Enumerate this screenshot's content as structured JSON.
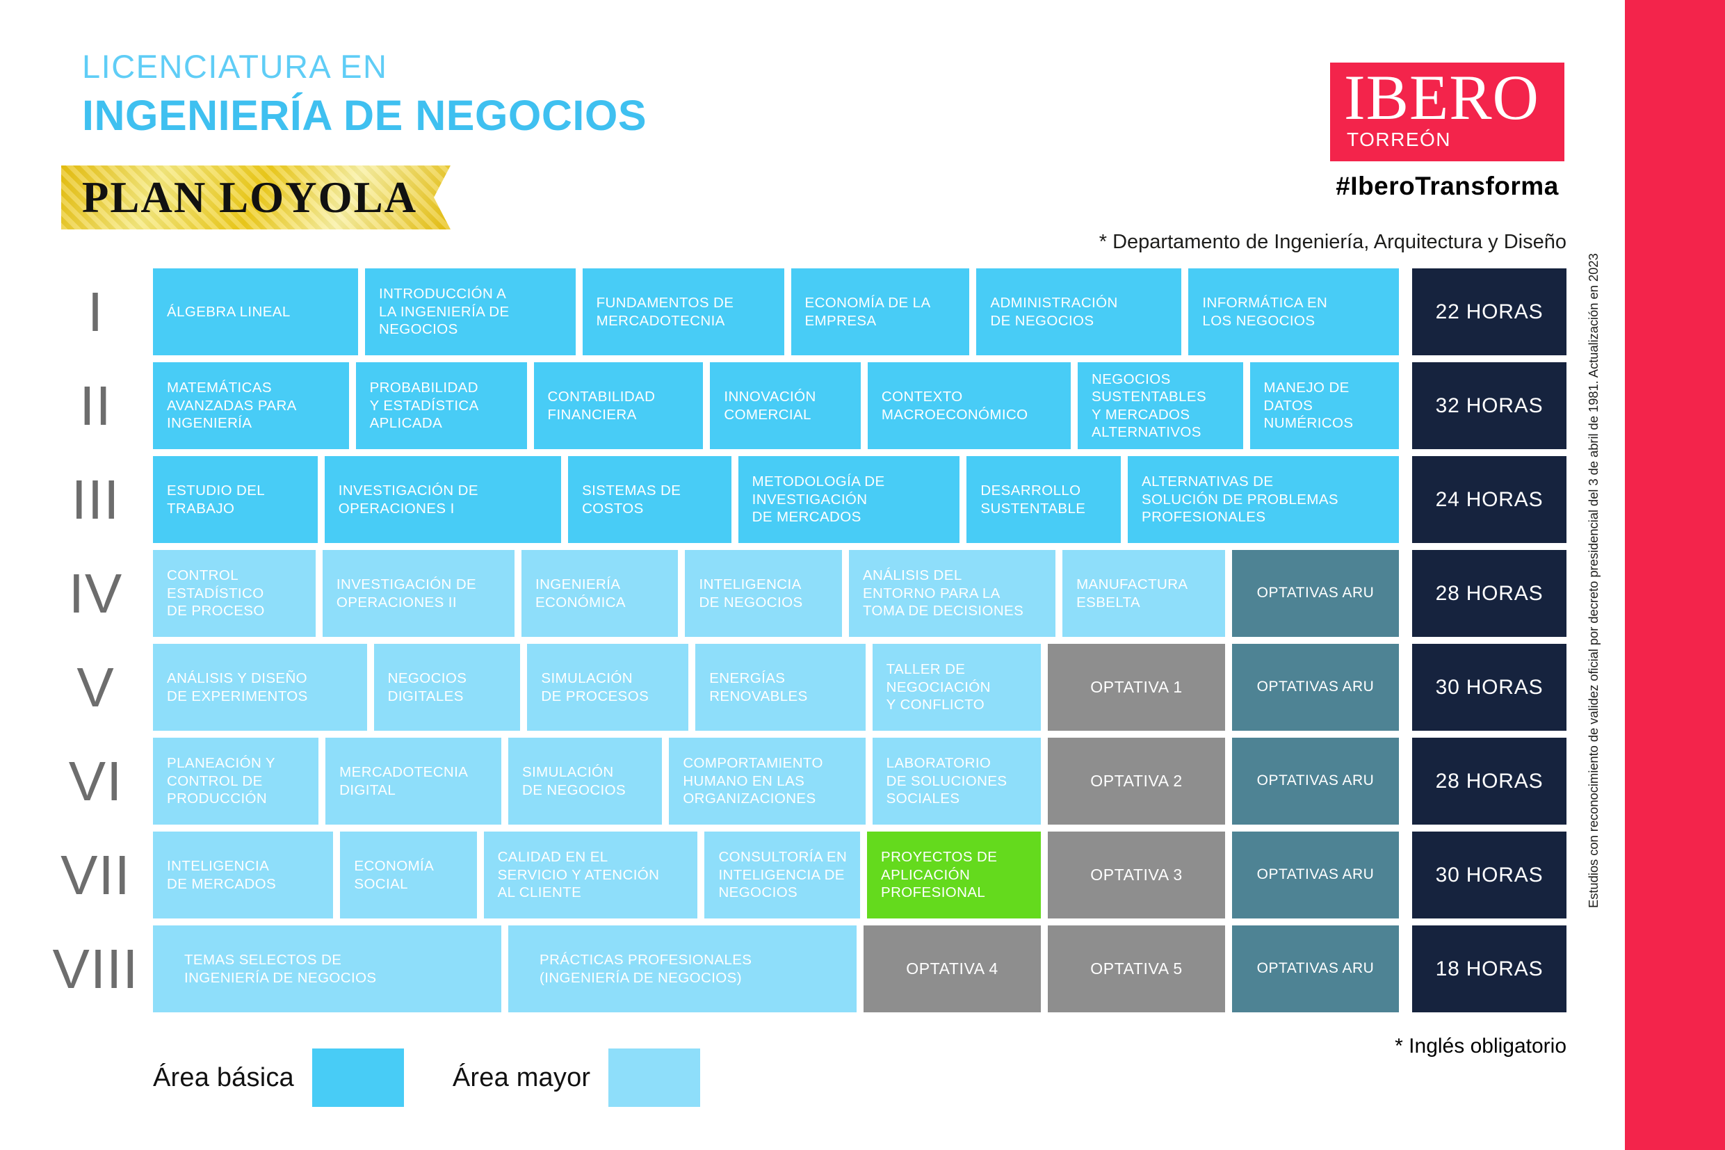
{
  "header": {
    "degree_type": "LICENCIATURA EN",
    "degree_name": "INGENIERÍA DE NEGOCIOS",
    "plan_banner": "PLAN LOYOLA",
    "logo": {
      "name": "IBERO",
      "campus": "TORREÓN",
      "hashtag": "#IberoTransforma"
    },
    "department_note": "* Departamento de Ingeniería, Arquitectura y Diseño"
  },
  "colors": {
    "basica": "#48CCF6",
    "mayor": "#8EDEFA",
    "aru": "#4E8394",
    "optativa": "#8E8E8E",
    "green": "#64DA1D",
    "hours": "#16233E",
    "accent_red": "#F3244B",
    "gold": "#EECB1A"
  },
  "grid": {
    "rows": [
      {
        "numeral": "I",
        "hours": "22 HORAS",
        "cells": [
          {
            "label": "ÁLGEBRA LINEAL",
            "type": "basica",
            "w": 1.02
          },
          {
            "label": "INTRODUCCIÓN A\nLA INGENIERÍA DE\nNEGOCIOS",
            "type": "basica",
            "w": 1.05
          },
          {
            "label": "FUNDAMENTOS DE\nMERCADOTECNIA",
            "type": "basica",
            "w": 1.0
          },
          {
            "label": "ECONOMÍA DE LA\nEMPRESA",
            "type": "basica",
            "w": 0.87
          },
          {
            "label": "ADMINISTRACIÓN\nDE NEGOCIOS",
            "type": "basica",
            "w": 1.02
          },
          {
            "label": "INFORMÁTICA EN\nLOS NEGOCIOS",
            "type": "basica",
            "w": 1.05
          }
        ]
      },
      {
        "numeral": "II",
        "hours": "32 HORAS",
        "cells": [
          {
            "label": "MATEMÁTICAS\nAVANZADAS PARA\nINGENIERÍA",
            "type": "basica",
            "w": 1.17
          },
          {
            "label": "PROBABILIDAD\nY ESTADÍSTICA\nAPLICADA",
            "type": "basica",
            "w": 1.0
          },
          {
            "label": "CONTABILIDAD\nFINANCIERA",
            "type": "basica",
            "w": 0.99
          },
          {
            "label": "INNOVACIÓN\nCOMERCIAL",
            "type": "basica",
            "w": 0.86
          },
          {
            "label": "CONTEXTO\nMACROECONÓMICO",
            "type": "basica",
            "w": 1.22
          },
          {
            "label": "NEGOCIOS\nSUSTENTABLES\nY MERCADOS\nALTERNATIVOS",
            "type": "basica",
            "w": 0.96
          },
          {
            "label": "MANEJO DE\nDATOS\nNUMÉRICOS",
            "type": "basica",
            "w": 0.85
          }
        ]
      },
      {
        "numeral": "III",
        "hours": "24 HORAS",
        "cells": [
          {
            "label": "ESTUDIO DEL\nTRABAJO",
            "type": "basica",
            "w": 0.93
          },
          {
            "label": "INVESTIGACIÓN DE\nOPERACIONES I",
            "type": "basica",
            "w": 1.41
          },
          {
            "label": "SISTEMAS DE\nCOSTOS",
            "type": "basica",
            "w": 0.92
          },
          {
            "label": "METODOLOGÍA DE\nINVESTIGACIÓN\nDE MERCADOS",
            "type": "basica",
            "w": 1.31
          },
          {
            "label": "DESARROLLO\nSUSTENTABLE",
            "type": "basica",
            "w": 0.86
          },
          {
            "label": "ALTERNATIVAS DE\nSOLUCIÓN DE PROBLEMAS\nPROFESIONALES",
            "type": "basica",
            "w": 1.64
          }
        ]
      },
      {
        "numeral": "IV",
        "hours": "28 HORAS",
        "cells": [
          {
            "label": "CONTROL\nESTADÍSTICO\nDE PROCESO",
            "type": "mayor",
            "w": 0.94
          },
          {
            "label": "INVESTIGACIÓN DE\nOPERACIONES II",
            "type": "mayor",
            "w": 1.14
          },
          {
            "label": "INGENIERÍA\nECONÓMICA",
            "type": "mayor",
            "w": 0.9
          },
          {
            "label": "INTELIGENCIA\nDE NEGOCIOS",
            "type": "mayor",
            "w": 0.9
          },
          {
            "label": "ANÁLISIS DEL\nENTORNO PARA LA\nTOMA DE DECISIONES",
            "type": "mayor",
            "w": 1.24
          },
          {
            "label": "MANUFACTURA\nESBELTA",
            "type": "mayor",
            "w": 0.94
          },
          {
            "label": "OPTATIVAS ARU",
            "type": "aru"
          }
        ]
      },
      {
        "numeral": "V",
        "hours": "30 HORAS",
        "cells": [
          {
            "label": "ANÁLISIS Y DISEÑO\nDE EXPERIMENTOS",
            "type": "mayor",
            "w": 1.29
          },
          {
            "label": "NEGOCIOS\nDIGITALES",
            "type": "mayor",
            "w": 0.83
          },
          {
            "label": "SIMULACIÓN\nDE PROCESOS",
            "type": "mayor",
            "w": 0.93
          },
          {
            "label": "ENERGÍAS\nRENOVABLES",
            "type": "mayor",
            "w": 0.99
          },
          {
            "label": "TALLER DE\nNEGOCIACIÓN\nY CONFLICTO",
            "type": "mayor",
            "w": 0.98
          },
          {
            "label": "OPTATIVA 1",
            "type": "optativa"
          },
          {
            "label": "OPTATIVAS ARU",
            "type": "aru"
          }
        ]
      },
      {
        "numeral": "VI",
        "hours": "28 HORAS",
        "cells": [
          {
            "label": "PLANEACIÓN Y\nCONTROL DE\nPRODUCCIÓN",
            "type": "mayor",
            "w": 0.96
          },
          {
            "label": "MERCADOTECNIA\nDIGITAL",
            "type": "mayor",
            "w": 1.03
          },
          {
            "label": "SIMULACIÓN\nDE NEGOCIOS",
            "type": "mayor",
            "w": 0.88
          },
          {
            "label": "COMPORTAMIENTO\nHUMANO EN LAS\nORGANIZACIONES",
            "type": "mayor",
            "w": 1.17
          },
          {
            "label": "LABORATORIO\nDE SOLUCIONES\nSOCIALES",
            "type": "mayor",
            "w": 0.98
          },
          {
            "label": "OPTATIVA 2",
            "type": "optativa"
          },
          {
            "label": "OPTATIVAS ARU",
            "type": "aru"
          }
        ]
      },
      {
        "numeral": "VII",
        "hours": "30 HORAS",
        "cells": [
          {
            "label": "INTELIGENCIA\nDE MERCADOS",
            "type": "mayor",
            "w": 1.06
          },
          {
            "label": "ECONOMÍA\nSOCIAL",
            "type": "mayor",
            "w": 0.76
          },
          {
            "label": "CALIDAD EN EL\nSERVICIO Y ATENCIÓN\nAL CLIENTE",
            "type": "mayor",
            "w": 1.29
          },
          {
            "label": "CONSULTORÍA EN\nINTELIGENCIA DE\nNEGOCIOS",
            "type": "mayor",
            "w": 0.89
          },
          {
            "label": "PROYECTOS DE\nAPLICACIÓN\nPROFESIONAL",
            "type": "green"
          },
          {
            "label": "OPTATIVA 3",
            "type": "optativa"
          },
          {
            "label": "OPTATIVAS ARU",
            "type": "aru"
          }
        ]
      },
      {
        "numeral": "VIII",
        "hours": "18 HORAS",
        "cells": [
          {
            "label": "TEMAS SELECTOS DE\nINGENIERÍA DE NEGOCIOS",
            "type": "mayor",
            "w": 1.0,
            "wide": true
          },
          {
            "label": "PRÁCTICAS PROFESIONALES\n(INGENIERÍA DE NEGOCIOS)",
            "type": "mayor",
            "w": 1.0,
            "wide": true
          },
          {
            "label": "OPTATIVA 4",
            "type": "optativa"
          },
          {
            "label": "OPTATIVA 5",
            "type": "optativa"
          },
          {
            "label": "OPTATIVAS ARU",
            "type": "aru"
          }
        ]
      }
    ]
  },
  "legend": {
    "items": [
      {
        "label": "Área básica",
        "color": "#48CCF6"
      },
      {
        "label": "Área mayor",
        "color": "#8EDEFA"
      }
    ]
  },
  "footnotes": {
    "english": "* Inglés obligatorio"
  },
  "side_note": "Estudios con reconocimiento de validez oficial por decreto presidencial del 3 de abril de 1981. Actualización en 2023"
}
